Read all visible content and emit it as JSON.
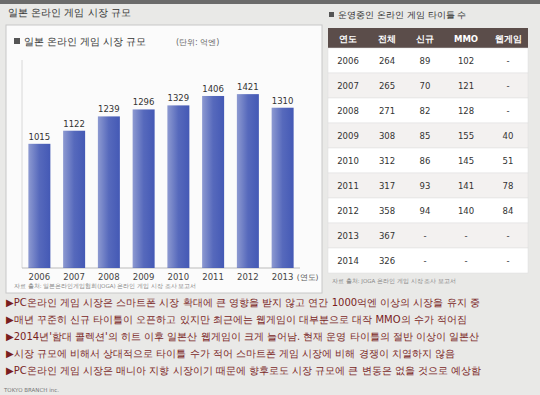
{
  "slide": {
    "title": "일본 온라인 게임 시장 규모",
    "footer": "TOKYO BRANCH inc.",
    "bullets": [
      "▶PC온라인 게임 시장은 스마트폰 시장 확대에 큰 영향을 받지 않고 연간 1000억엔 이상의 시장을 유지 중",
      "▶매년 꾸준히 신규 타이틀이 오픈하고 있지만 최근에는 웹게임이 대부분으로 대작 MMO의 수가 적어짐",
      "▶2014년'함대 콜렉션'의 히트 이후 일본산 웹게임이 크게 늘어남. 현재 운영 타이틀의 절반 이상이 일본산",
      "▶시장 규모에 비해서 상대적으로 타이틀 수가 적어 스마트폰 게임 시장에 비해 경쟁이 치열하지 않음",
      "▶PC온라인 게임 시장은 매니아 지향 시장이기 때문에 향후로도 시장 규모에 큰 변동은 없을 것으로 예상함"
    ]
  },
  "chart_data": {
    "type": "bar",
    "title": "일본 온라인 게임 시장 규모",
    "subtitle": "(단위: 억엔)",
    "x_label": "(연도)",
    "categories": [
      "2006",
      "2007",
      "2008",
      "2009",
      "2010",
      "2011",
      "2012",
      "2013"
    ],
    "values": [
      1015,
      1122,
      1239,
      1296,
      1329,
      1406,
      1421,
      1310
    ],
    "color": "#4459b5",
    "ylim": [
      0,
      1700
    ],
    "yticks": [],
    "tick_labels": "x",
    "data_labels": true,
    "grid": false,
    "annotations": [
      "자료 출처: 일본온라인게임협회(JOGA) 온라인 게임 시장 조사 보고서"
    ]
  },
  "table": {
    "title": "운영중인 온라인 게임 타이틀 수",
    "header": [
      "연도",
      "전체",
      "신규",
      "MMO",
      "웹게임"
    ],
    "rows": [
      [
        2006,
        264,
        89,
        102,
        "-"
      ],
      [
        2007,
        265,
        70,
        121,
        "-"
      ],
      [
        2008,
        271,
        82,
        128,
        "-"
      ],
      [
        2009,
        308,
        85,
        155,
        40
      ],
      [
        2010,
        312,
        86,
        145,
        51
      ],
      [
        2011,
        317,
        93,
        141,
        78
      ],
      [
        2012,
        358,
        94,
        140,
        84
      ],
      [
        2013,
        367,
        "-",
        "-",
        "-"
      ],
      [
        2014,
        326,
        "-",
        "-",
        "-"
      ]
    ],
    "source": "자료 출처: JOGA 온라인 게임 시장 조사 보고서"
  }
}
